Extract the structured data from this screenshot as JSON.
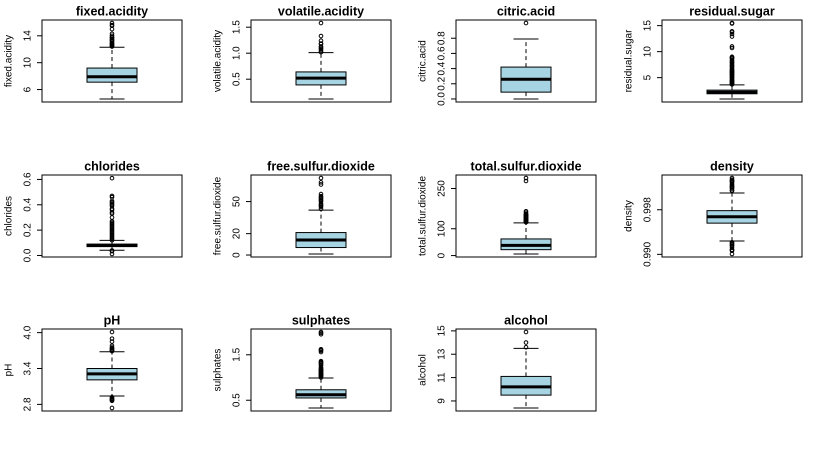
{
  "chart_data": [
    {
      "type": "box",
      "title": "fixed.acidity",
      "ylabel": "fixed.acidity",
      "color": "#a6d4e3",
      "ylim": [
        4.148,
        16.352
      ],
      "yticks": [
        6,
        10,
        14
      ],
      "whisker_low": 4.6,
      "q1": 7.1,
      "median": 7.9,
      "q3": 9.2,
      "whisker_high": 12.3,
      "outliers": [
        12.4,
        12.5,
        12.6,
        12.7,
        12.8,
        12.9,
        13.0,
        13.2,
        13.3,
        13.4,
        13.5,
        13.7,
        13.8,
        14.0,
        14.3,
        15.0,
        15.5,
        15.6,
        15.9
      ]
    },
    {
      "type": "box",
      "title": "volatile.acidity",
      "ylabel": "volatile.acidity",
      "color": "#a6d4e3",
      "ylim": [
        0.0616,
        1.6384
      ],
      "yticks": [
        0.5,
        {
          "value": 1,
          "label": "1.0"
        },
        1.5
      ],
      "whisker_low": 0.12,
      "q1": 0.39,
      "median": 0.52,
      "q3": 0.64,
      "whisker_high": 1.01,
      "outliers": [
        1.02,
        1.04,
        1.07,
        1.09,
        1.115,
        1.13,
        1.18,
        1.185,
        1.24,
        1.33,
        1.58
      ]
    },
    {
      "type": "box",
      "title": "citric.acid",
      "ylabel": "citric.acid",
      "color": "#a6d4e3",
      "ylim": [
        -0.04,
        1.04
      ],
      "yticks": [
        {
          "value": 0,
          "label": "0.0"
        },
        0.2,
        0.4,
        0.6,
        0.8
      ],
      "whisker_low": 0,
      "q1": 0.09,
      "median": 0.26,
      "q3": 0.42,
      "whisker_high": 0.79,
      "outliers": [
        1.0
      ]
    },
    {
      "type": "box",
      "title": "residual.sugar",
      "ylabel": "residual.sugar",
      "color": "#a6d4e3",
      "ylim": [
        0.316,
        16.084
      ],
      "yticks": [
        5,
        10,
        15
      ],
      "whisker_low": 0.9,
      "q1": 1.9,
      "median": 2.2,
      "q3": 2.6,
      "whisker_high": 3.6,
      "outliers": [
        3.7,
        3.8,
        3.9,
        4.0,
        4.1,
        4.2,
        4.3,
        4.4,
        4.5,
        4.6,
        4.8,
        5.0,
        5.1,
        5.2,
        5.4,
        5.5,
        5.6,
        5.8,
        5.9,
        6.0,
        6.1,
        6.2,
        6.3,
        6.4,
        6.6,
        6.7,
        7.0,
        7.2,
        7.3,
        7.5,
        7.8,
        7.9,
        8.1,
        8.3,
        8.6,
        8.8,
        8.9,
        9.0,
        10.7,
        11.0,
        12.9,
        13.4,
        13.8,
        13.9,
        15.4,
        15.5
      ]
    },
    {
      "type": "box",
      "title": "chlorides",
      "ylabel": "chlorides",
      "color": "#a6d4e3",
      "ylim": [
        -0.012,
        0.635
      ],
      "yticks": [
        {
          "value": 0,
          "label": "0.0"
        },
        0.2,
        0.4,
        0.6
      ],
      "whisker_low": 0.041,
      "q1": 0.07,
      "median": 0.079,
      "q3": 0.09,
      "whisker_high": 0.119,
      "outliers": [
        0.012,
        0.034,
        0.038,
        0.039,
        0.12,
        0.13,
        0.14,
        0.15,
        0.16,
        0.17,
        0.18,
        0.19,
        0.2,
        0.21,
        0.22,
        0.23,
        0.24,
        0.25,
        0.26,
        0.27,
        0.3,
        0.33,
        0.34,
        0.36,
        0.37,
        0.39,
        0.4,
        0.41,
        0.42,
        0.43,
        0.46,
        0.47,
        0.61
      ]
    },
    {
      "type": "box",
      "title": "free.sulfur.dioxide",
      "ylabel": "free.sulfur.dioxide",
      "color": "#a6d4e3",
      "ylim": [
        -1.84,
        74.84
      ],
      "yticks": [
        0,
        20,
        50
      ],
      "whisker_low": 1,
      "q1": 7,
      "median": 14,
      "q3": 21,
      "whisker_high": 42,
      "outliers": [
        43,
        45,
        46,
        47,
        48,
        50,
        51,
        52,
        53,
        54,
        55,
        57,
        66,
        68,
        72
      ]
    },
    {
      "type": "box",
      "title": "total.sulfur.dioxide",
      "ylabel": "total.sulfur.dioxide",
      "color": "#a6d4e3",
      "ylim": [
        -5.32,
        300.32
      ],
      "yticks": [
        0,
        100,
        250
      ],
      "whisker_low": 6,
      "q1": 22,
      "median": 38,
      "q3": 62,
      "whisker_high": 122,
      "outliers": [
        124,
        125,
        127,
        128,
        129,
        130,
        131,
        133,
        134,
        135,
        136,
        139,
        140,
        141,
        143,
        144,
        145,
        147,
        148,
        149,
        151,
        152,
        153,
        155,
        160,
        165,
        278,
        289
      ]
    },
    {
      "type": "box",
      "title": "density",
      "ylabel": "density",
      "color": "#a6d4e3",
      "ylim": [
        0.989525,
        1.004235
      ],
      "yticks": [
        {
          "value": 0.99,
          "label": "0.990"
        },
        0.998
      ],
      "whisker_low": 0.9924,
      "q1": 0.9956,
      "median": 0.99675,
      "q3": 0.99784,
      "whisker_high": 1.001,
      "outliers": [
        0.99007,
        0.99064,
        0.9908,
        0.99084,
        0.9912,
        0.99154,
        0.9916,
        0.99182,
        0.992,
        0.99216,
        1.0014,
        1.0015,
        1.0018,
        1.002,
        1.0021,
        1.0022,
        1.0024,
        1.0026,
        1.0029,
        1.0031,
        1.0032,
        1.00315,
        1.0034,
        1.00369
      ]
    },
    {
      "type": "box",
      "title": "pH",
      "ylabel": "pH",
      "color": "#a6d4e3",
      "ylim": [
        2.6892,
        4.0608
      ],
      "yticks": [
        2.8,
        3.4,
        {
          "value": 4,
          "label": "4.0"
        }
      ],
      "whisker_low": 2.94,
      "q1": 3.21,
      "median": 3.31,
      "q3": 3.4,
      "whisker_high": 3.68,
      "outliers": [
        2.74,
        2.86,
        2.87,
        2.88,
        2.89,
        2.9,
        2.92,
        3.69,
        3.7,
        3.71,
        3.72,
        3.74,
        3.75,
        3.78,
        3.85,
        3.9,
        4.01
      ]
    },
    {
      "type": "box",
      "title": "sulphates",
      "ylabel": "sulphates",
      "color": "#a6d4e3",
      "ylim": [
        0.2632,
        2.0668
      ],
      "yticks": [
        0.5,
        1.5
      ],
      "whisker_low": 0.33,
      "q1": 0.55,
      "median": 0.62,
      "q3": 0.73,
      "whisker_high": 0.99,
      "outliers": [
        1.0,
        1.02,
        1.03,
        1.04,
        1.05,
        1.06,
        1.07,
        1.08,
        1.09,
        1.1,
        1.12,
        1.13,
        1.14,
        1.15,
        1.16,
        1.17,
        1.18,
        1.2,
        1.22,
        1.26,
        1.28,
        1.31,
        1.33,
        1.34,
        1.36,
        1.56,
        1.59,
        1.61,
        1.62,
        1.95,
        1.98,
        2.0
      ]
    },
    {
      "type": "box",
      "title": "alcohol",
      "ylabel": "alcohol",
      "color": "#a6d4e3",
      "ylim": [
        8.14,
        15.16
      ],
      "yticks": [
        9,
        11,
        13,
        15
      ],
      "whisker_low": 8.4,
      "q1": 9.5,
      "median": 10.2,
      "q3": 11.1,
      "whisker_high": 13.5,
      "outliers": [
        13.6,
        14.0,
        14.9
      ]
    }
  ]
}
